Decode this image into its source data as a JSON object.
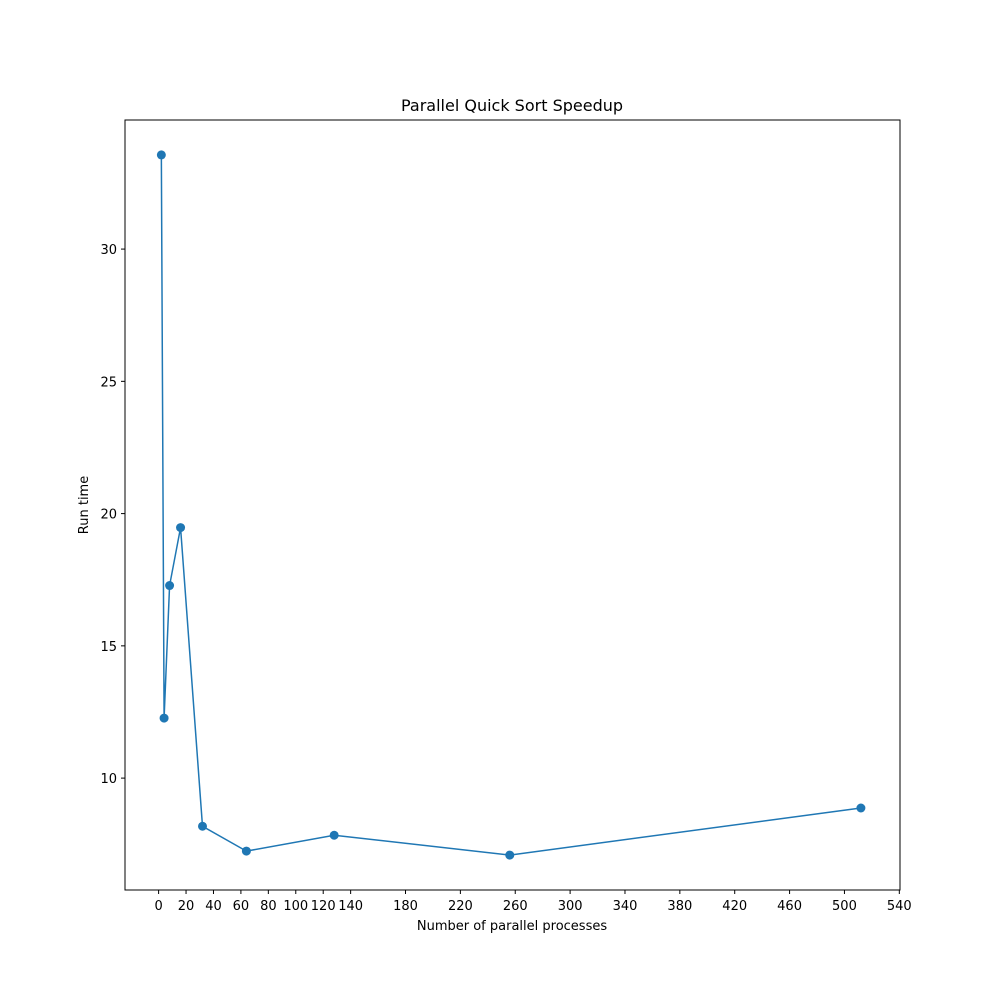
{
  "chart_data": {
    "type": "line",
    "title": "Parallel Quick Sort Speedup",
    "x_label": "Number of parallel processes",
    "y_label": "Run time",
    "x": [
      2,
      4,
      8,
      16,
      32,
      64,
      128,
      256,
      512
    ],
    "series": [
      {
        "name": "Run time",
        "color": "#1f77b4",
        "values": [
          33.56,
          12.27,
          17.28,
          19.47,
          8.18,
          7.24,
          7.84,
          7.09,
          8.87
        ]
      }
    ],
    "xlim": [
      -24.5,
      540.5
    ],
    "xticks": [
      0,
      20,
      40,
      60,
      80,
      100,
      120,
      140,
      180,
      220,
      260,
      300,
      340,
      380,
      420,
      460,
      500,
      540
    ],
    "ylim": [
      5.77,
      34.88
    ],
    "yticks": [
      10,
      15,
      20,
      25,
      30
    ],
    "grid": false
  }
}
